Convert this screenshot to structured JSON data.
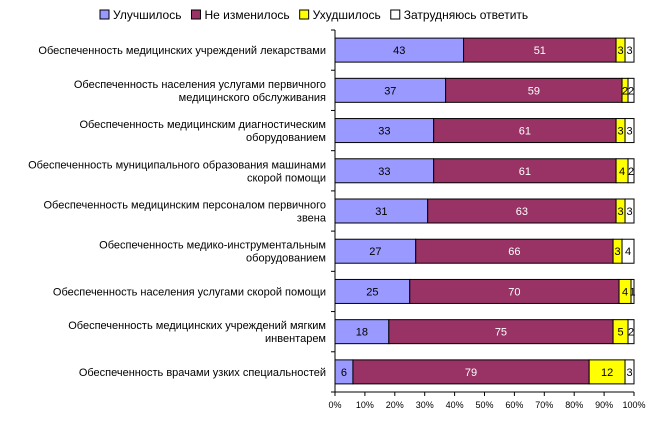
{
  "chart_data": {
    "type": "bar",
    "orientation": "horizontal",
    "stacked": true,
    "title": "",
    "xlabel": "",
    "ylabel": "",
    "xlim": [
      0,
      100
    ],
    "x_ticks": [
      "0%",
      "10%",
      "20%",
      "30%",
      "40%",
      "50%",
      "60%",
      "70%",
      "80%",
      "90%",
      "100%"
    ],
    "grid": false,
    "legend_position": "top",
    "categories": [
      [
        "Обеспеченность медицинских учреждений лекарствами"
      ],
      [
        "Обеспеченность населения услугами первичного",
        "медицинского обслуживания"
      ],
      [
        "Обеспеченность медицинским диагностическим",
        "оборудованием"
      ],
      [
        "Обеспеченность муниципального образования машинами",
        "скорой помощи"
      ],
      [
        "Обеспеченность медицинским персоналом первичного",
        "звена"
      ],
      [
        "Обеспеченность медико-инструментальным",
        "оборудованием"
      ],
      [
        "Обеспеченность населения услугами скорой помощи"
      ],
      [
        "Обеспеченность медицинских учреждений мягким",
        "инвентарем"
      ],
      [
        "Обеспеченность врачами узких специальностей"
      ]
    ],
    "series": [
      {
        "name": "Улучшилось",
        "color": "#9999ff",
        "values": [
          43,
          37,
          33,
          33,
          31,
          27,
          25,
          18,
          6
        ]
      },
      {
        "name": "Не изменилось",
        "color": "#993366",
        "values": [
          51,
          59,
          61,
          61,
          63,
          66,
          70,
          75,
          79
        ]
      },
      {
        "name": "Ухудшилось",
        "color": "#ffff00",
        "values": [
          3,
          2,
          3,
          4,
          3,
          3,
          4,
          5,
          12
        ]
      },
      {
        "name": "Затрудняюсь ответить",
        "color": "#ffffff",
        "values": [
          3,
          2,
          3,
          2,
          3,
          4,
          1,
          2,
          3
        ]
      }
    ],
    "label_colors": [
      "#000000",
      "#ffffff",
      "#000000",
      "#000000"
    ]
  }
}
